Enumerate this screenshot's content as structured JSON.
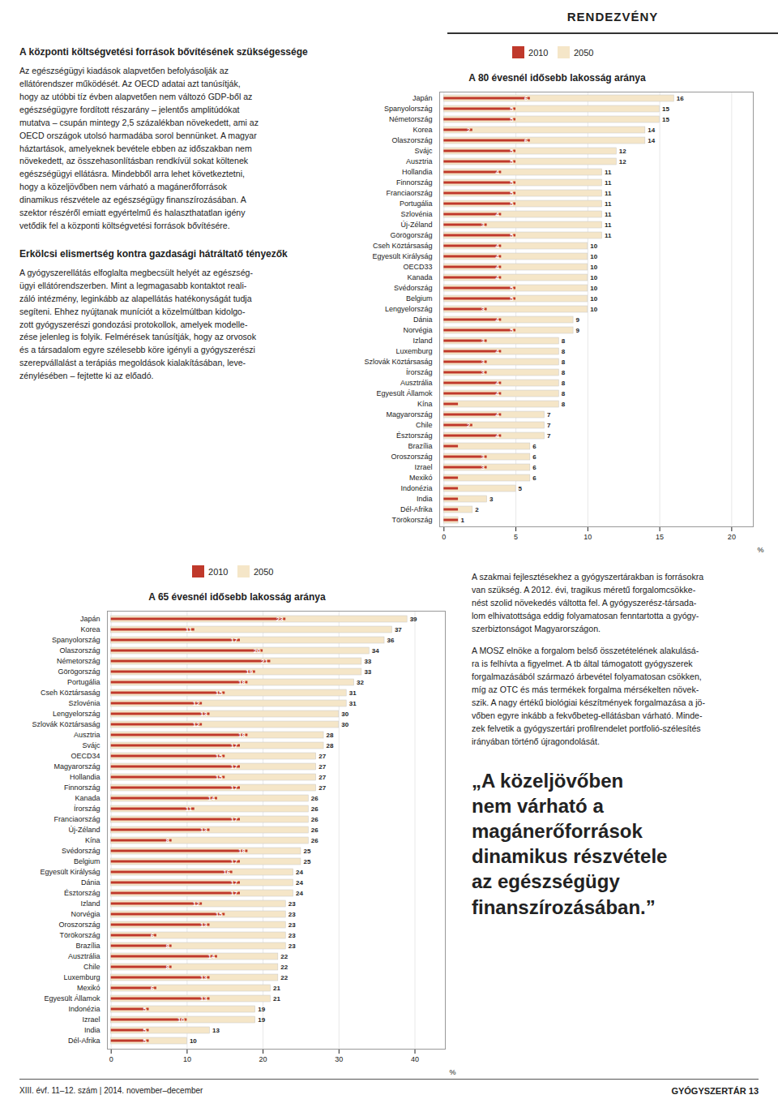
{
  "chart_data": [
    {
      "type": "bar",
      "orientation": "horizontal",
      "title": "A 80 évesnél idősebb lakosság aránya",
      "xlabel": "%",
      "categories": [
        "Japán",
        "Spanyolország",
        "Németország",
        "Korea",
        "Olaszország",
        "Svájc",
        "Ausztria",
        "Hollandia",
        "Finnország",
        "Franciaország",
        "Portugália",
        "Szlovénia",
        "Új-Zéland",
        "Görögország",
        "Cseh Köztársaság",
        "Egyesült Királyság",
        "OECD33",
        "Kanada",
        "Svédország",
        "Belgium",
        "Lengyelország",
        "Dánia",
        "Norvégia",
        "Izland",
        "Luxemburg",
        "Szlovák Köztársaság",
        "Írország",
        "Ausztrália",
        "Egyesült Államok",
        "Kína",
        "Magyarország",
        "Chile",
        "Észtország",
        "Brazília",
        "Oroszország",
        "Izrael",
        "Mexikó",
        "Indonézia",
        "India",
        "Dél-Afrika",
        "Törökország"
      ],
      "series": [
        {
          "name": "2010",
          "color": "#c0392b",
          "values": [
            6,
            5,
            5,
            2,
            6,
            5,
            5,
            4,
            5,
            5,
            5,
            4,
            3,
            5,
            4,
            4,
            4,
            4,
            5,
            5,
            3,
            4,
            5,
            3,
            4,
            3,
            3,
            4,
            4,
            1,
            4,
            2,
            4,
            1,
            3,
            3,
            1,
            1,
            1,
            1,
            1
          ],
          "value_labels": [
            "6",
            "5",
            "5",
            "2",
            "6",
            "5",
            "5",
            "4",
            "5",
            "5",
            "5",
            "4",
            "3",
            "5",
            "4",
            "4",
            "4",
            "4",
            "5",
            "5",
            "3",
            "4",
            "5",
            "3",
            "4",
            "3",
            "3",
            "4",
            "4",
            null,
            "4",
            "2",
            "4",
            null,
            "3",
            "3",
            null,
            null,
            null,
            null,
            null
          ]
        },
        {
          "name": "2050",
          "color": "#f5e6c8",
          "values": [
            16,
            15,
            15,
            14,
            14,
            12,
            12,
            11,
            11,
            11,
            11,
            11,
            11,
            11,
            10,
            10,
            10,
            10,
            10,
            10,
            10,
            9,
            9,
            8,
            8,
            8,
            8,
            8,
            8,
            8,
            7,
            7,
            7,
            6,
            6,
            6,
            6,
            5,
            3,
            2,
            1
          ]
        }
      ],
      "xlim": [
        -0.3,
        21.5
      ],
      "xticks": [
        0,
        5,
        10,
        15,
        20
      ],
      "grid": true,
      "data_labels": true,
      "legend": "top"
    },
    {
      "type": "bar",
      "orientation": "horizontal",
      "title": "A 65 évesnél idősebb lakosság aránya",
      "xlabel": "%",
      "categories": [
        "Japán",
        "Korea",
        "Spanyolország",
        "Olaszország",
        "Németország",
        "Görögország",
        "Portugália",
        "Cseh Köztársaság",
        "Szlovénia",
        "Lengyelország",
        "Szlovák Köztársaság",
        "Ausztria",
        "Svájc",
        "OECD34",
        "Magyarország",
        "Hollandia",
        "Finnország",
        "Kanada",
        "Írország",
        "Franciaország",
        "Új-Zéland",
        "Kína",
        "Svédország",
        "Belgium",
        "Egyesült Királyság",
        "Dánia",
        "Észtország",
        "Izland",
        "Norvégia",
        "Oroszország",
        "Törökország",
        "Brazília",
        "Ausztrália",
        "Chile",
        "Luxemburg",
        "Mexikó",
        "Egyesült Államok",
        "Indonézia",
        "Izrael",
        "India",
        "Dél-Afrika"
      ],
      "series": [
        {
          "name": "2010",
          "color": "#c0392b",
          "values": [
            23,
            11,
            17,
            20,
            21,
            19,
            18,
            15,
            12,
            13,
            12,
            18,
            17,
            15,
            17,
            15,
            17,
            14,
            11,
            17,
            13,
            8,
            18,
            17,
            16,
            17,
            17,
            12,
            15,
            13,
            6,
            8,
            14,
            8,
            13,
            6,
            13,
            5,
            10,
            5,
            5
          ]
        },
        {
          "name": "2050",
          "color": "#f5e6c8",
          "values": [
            39,
            37,
            36,
            34,
            33,
            33,
            32,
            31,
            31,
            30,
            30,
            28,
            28,
            27,
            27,
            27,
            27,
            26,
            26,
            26,
            26,
            26,
            25,
            25,
            24,
            24,
            24,
            23,
            23,
            23,
            23,
            23,
            22,
            22,
            22,
            21,
            21,
            19,
            19,
            13,
            10
          ]
        }
      ],
      "xlim": [
        -0.5,
        44
      ],
      "xticks": [
        0,
        10,
        20,
        30,
        40
      ],
      "grid": true,
      "data_labels": true,
      "legend": "top"
    }
  ],
  "annotations": [
    "RENDEZVÉNY",
    "A központi költségvetési források bővítésének szükségessége",
    "Az egészségügyi kiadások alapvetően befolyásolják az\nellátórendszer működését. Az OECD adatai azt tanúsítják,\nhogy az utóbbi tíz évben alapvetően nem változó GDP-ből az\negészségügyre fordított részarány – jelentős amplitúdókat\nmutatva – csupán mintegy 2,5 százalékban növekedett, ami az\nOECD országok utolsó harmadába sorol bennünket. A magyar\nháztartások, amelyeknek bevétele ebben az időszakban nem\nnövekedett, az összehasonlításban rendkívül sokat költenek\negészségügyi ellátásra. Mindebből arra lehet következtetni,\nhogy a közeljövőben nem várható a magánerőforrások\ndinamikus részvétele az egészségügy finanszírozásában. A\nszektor részéről emiatt egyértelmű és halaszthatatlan igény\nvetődik fel a központi költségvetési források bővítésére.",
    "Erkölcsi elismertség kontra gazdasági hátráltatő tényezők",
    "A gyógyszerellátás elfoglalta megbecsült helyét az egészség-\nügyi ellátórendszerben. Mint a legmagasabb kontaktot reali-\nzáló intézmény, leginkább az alapellátás hatékonyságát tudja\nsegíteni. Ehhez nyújtanak muníciót a közelmúltban kidolgo-\nzott gyógyszerészi gondozási protokollok, amelyek modelle-\nzése jelenleg is folyik. Felmérések tanúsítják, hogy az orvosok\nés a társadalom egyre szélesebb köre igényli a gyógyszerészi\nszerepvállalást a terápiás megoldások kialakításában, leve-\nzénylésében – fejtette ki az előadó.",
    "A szakmai fejlesztésekhez a gyógyszertárakban is forrásokra\nvan szükség. A 2012. évi, tragikus méretű forgalomcsökke-\nnést szolid növekedés váltotta fel. A gyógyszerész-társada-\nlom elhivatottsága eddig folyamatosan fenntartotta a gyógy-\nszerbiztonságot Magyarországon.",
    "A MOSZ elnöke a forgalom belső összetételének alakulásá-\nra is felhívta a figyelmet. A tb által támogatott gyógyszerek\nforgalmazásából származó árbevétel folyamatosan csökken,\nmíg az OTC és más termékek forgalma mérsékelten növek-\nszik. A nagy értékű biológiai készítmények forgalmazása a jö-\nvőben egyre inkább a fekvőbeteg-ellátásban várható. Minde-\nzek felvetik a gyógyszertári profilrendelet portfolió-szélesítés\nirányában történő újragondolását.",
    "„A közeljövőben\nnem várható a\nmagánerőforrások\ndinamikus részvétele\naz egészségügy\nfinanszírozásában.”",
    "XIII. évf. 11–12. szám  |  2014. november–december",
    "GYÓGYSZERTÁR   13"
  ]
}
